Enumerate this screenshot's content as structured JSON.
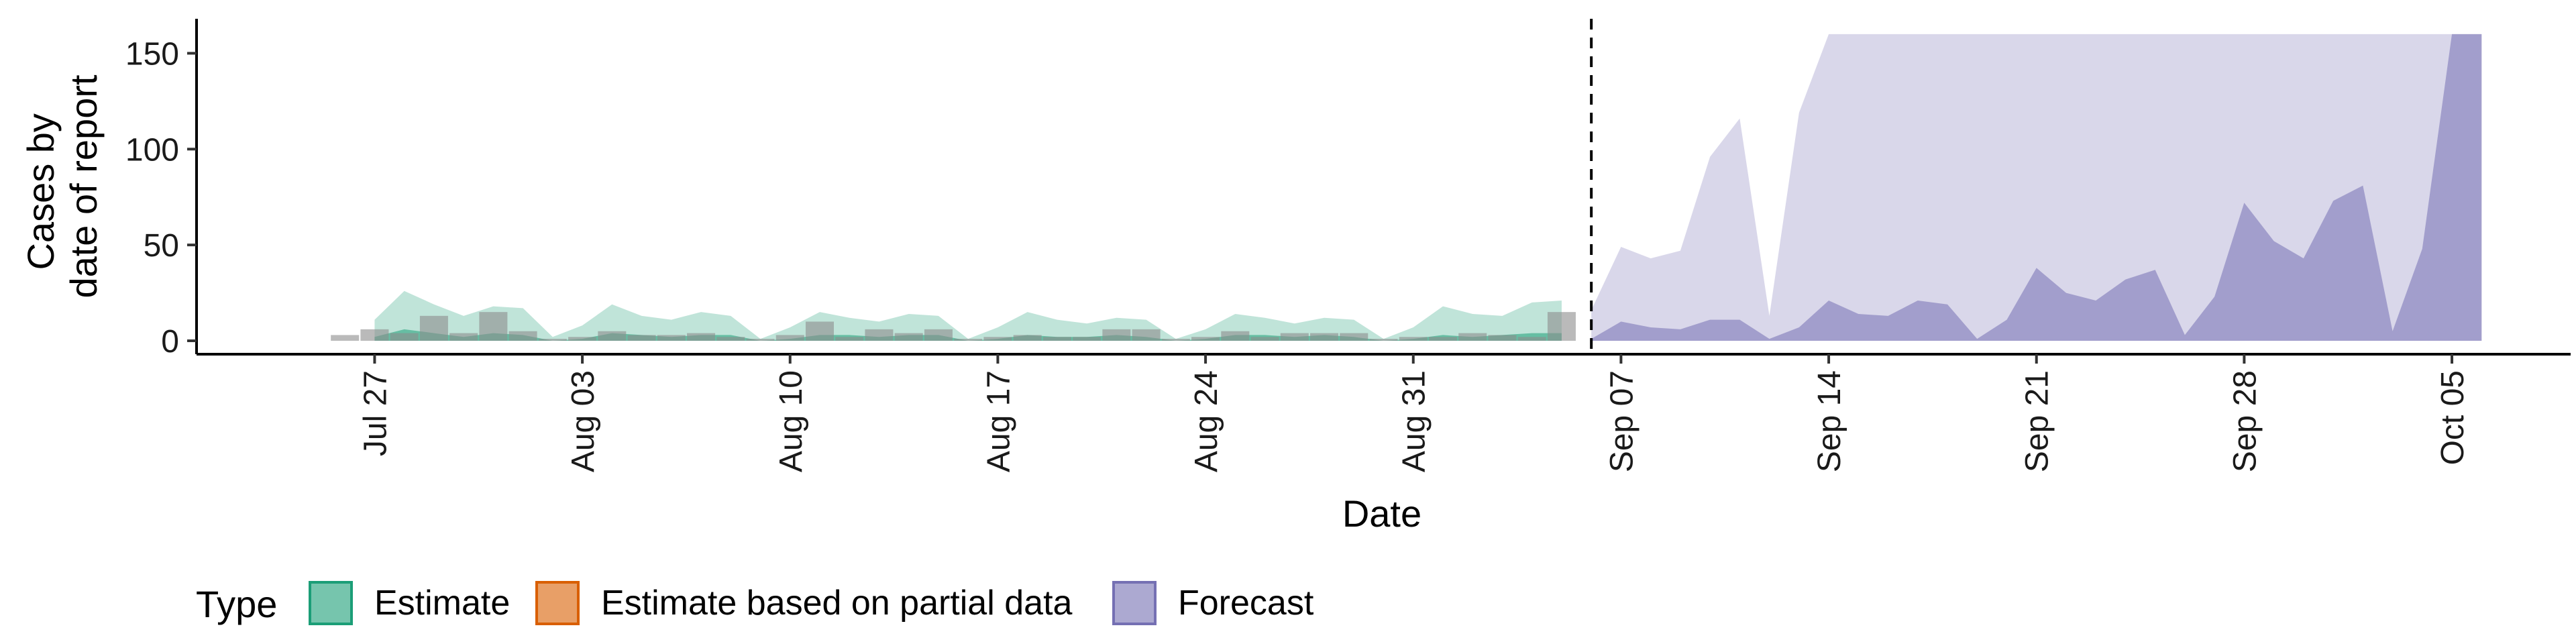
{
  "chart_data": {
    "type": "area",
    "xlabel": "Date",
    "ylabel_lines": [
      "Cases by",
      "date of report"
    ],
    "x_ticks": [
      "Jul 27",
      "Aug 03",
      "Aug 10",
      "Aug 17",
      "Aug 24",
      "Aug 31",
      "Sep 07",
      "Sep 14",
      "Sep 21",
      "Sep 28",
      "Oct 05"
    ],
    "y_ticks": [
      "0",
      "50",
      "100",
      "150"
    ],
    "ylim": [
      -7,
      168
    ],
    "xlim": [
      "2020-07-21",
      "2020-10-09"
    ],
    "forecast_start_marker": "2020-09-06",
    "grid": false,
    "legend": {
      "title": "Type",
      "position": "bottom-left",
      "items": [
        {
          "label": "Estimate",
          "fill": "#1b9e77"
        },
        {
          "label": "Estimate based on partial data",
          "fill": "#d95f02"
        },
        {
          "label": "Forecast",
          "fill": "#7570b3"
        }
      ]
    },
    "series": [
      {
        "name": "Estimate",
        "color": "#1b9e77",
        "dates": [
          "2020-07-27",
          "2020-07-28",
          "2020-07-29",
          "2020-07-30",
          "2020-07-31",
          "2020-08-01",
          "2020-08-02",
          "2020-08-03",
          "2020-08-04",
          "2020-08-05",
          "2020-08-06",
          "2020-08-07",
          "2020-08-08",
          "2020-08-09",
          "2020-08-10",
          "2020-08-11",
          "2020-08-12",
          "2020-08-13",
          "2020-08-14",
          "2020-08-15",
          "2020-08-16",
          "2020-08-17",
          "2020-08-18",
          "2020-08-19",
          "2020-08-20",
          "2020-08-21",
          "2020-08-22",
          "2020-08-23",
          "2020-08-24",
          "2020-08-25",
          "2020-08-26",
          "2020-08-27",
          "2020-08-28",
          "2020-08-29",
          "2020-08-30",
          "2020-08-31",
          "2020-09-01",
          "2020-09-02",
          "2020-09-03",
          "2020-09-04",
          "2020-09-05"
        ],
        "upper": [
          11,
          26,
          19,
          13,
          18,
          17,
          2,
          8,
          19,
          13,
          11,
          15,
          13,
          1,
          7,
          15,
          12,
          10,
          14,
          13,
          1,
          7,
          15,
          11,
          9,
          12,
          11,
          1,
          6,
          14,
          12,
          9,
          12,
          11,
          1,
          7,
          18,
          14,
          13,
          20,
          21
        ],
        "lower": [
          2,
          6,
          4,
          2,
          4,
          3,
          0,
          1,
          4,
          3,
          2,
          3,
          3,
          0,
          1,
          3,
          3,
          2,
          3,
          3,
          0,
          1,
          3,
          2,
          2,
          3,
          2,
          0,
          1,
          3,
          3,
          2,
          3,
          2,
          0,
          1,
          3,
          2,
          3,
          4,
          4
        ]
      },
      {
        "name": "Forecast",
        "color": "#7570b3",
        "dates": [
          "2020-09-06",
          "2020-09-07",
          "2020-09-08",
          "2020-09-09",
          "2020-09-10",
          "2020-09-11",
          "2020-09-12",
          "2020-09-13",
          "2020-09-14",
          "2020-09-15",
          "2020-09-16",
          "2020-09-17",
          "2020-09-18",
          "2020-09-19",
          "2020-09-20",
          "2020-09-21",
          "2020-09-22",
          "2020-09-23",
          "2020-09-24",
          "2020-09-25",
          "2020-09-26",
          "2020-09-27",
          "2020-09-28",
          "2020-09-29",
          "2020-09-30",
          "2020-10-01",
          "2020-10-02",
          "2020-10-03",
          "2020-10-04",
          "2020-10-05",
          "2020-10-06"
        ],
        "upper": [
          16,
          49,
          43,
          47,
          96,
          116,
          13,
          119,
          160,
          160,
          160,
          160,
          160,
          160,
          160,
          160,
          160,
          160,
          160,
          160,
          160,
          160,
          160,
          160,
          160,
          160,
          160,
          160,
          160,
          160,
          160
        ],
        "lower": [
          1,
          10,
          7,
          6,
          11,
          11,
          1,
          7,
          21,
          14,
          13,
          21,
          19,
          1,
          11,
          38,
          25,
          21,
          32,
          37,
          3,
          23,
          72,
          52,
          43,
          73,
          81,
          5,
          48,
          160,
          160
        ]
      }
    ],
    "observed_bars": {
      "dates": [
        "2020-07-26",
        "2020-07-27",
        "2020-07-28",
        "2020-07-29",
        "2020-07-30",
        "2020-07-31",
        "2020-08-01",
        "2020-08-02",
        "2020-08-03",
        "2020-08-04",
        "2020-08-05",
        "2020-08-06",
        "2020-08-07",
        "2020-08-08",
        "2020-08-09",
        "2020-08-10",
        "2020-08-11",
        "2020-08-12",
        "2020-08-13",
        "2020-08-14",
        "2020-08-15",
        "2020-08-16",
        "2020-08-17",
        "2020-08-18",
        "2020-08-19",
        "2020-08-20",
        "2020-08-21",
        "2020-08-22",
        "2020-08-23",
        "2020-08-24",
        "2020-08-25",
        "2020-08-26",
        "2020-08-27",
        "2020-08-28",
        "2020-08-29",
        "2020-08-30",
        "2020-08-31",
        "2020-09-01",
        "2020-09-02",
        "2020-09-03",
        "2020-09-04",
        "2020-09-05"
      ],
      "values": [
        3,
        6,
        4,
        13,
        4,
        15,
        5,
        1,
        2,
        5,
        3,
        3,
        4,
        2,
        1,
        3,
        10,
        2,
        6,
        4,
        6,
        1,
        2,
        3,
        2,
        2,
        6,
        6,
        1,
        2,
        5,
        2,
        4,
        4,
        4,
        1,
        2,
        2,
        4,
        3,
        2,
        15
      ]
    }
  }
}
